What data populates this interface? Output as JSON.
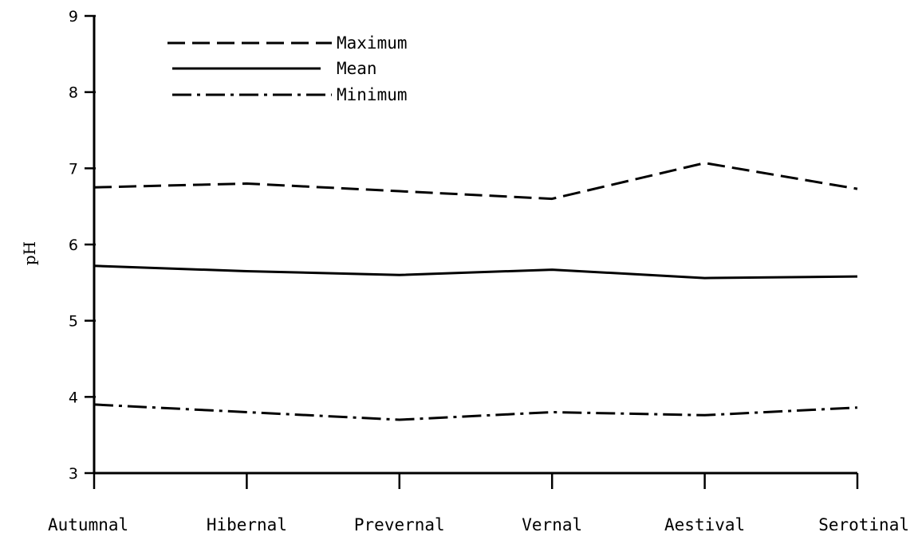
{
  "chart_data": {
    "type": "line",
    "title": "",
    "xlabel": "",
    "ylabel": "pH",
    "ylim": [
      3,
      9
    ],
    "yticks": [
      "3",
      "4",
      "5",
      "6",
      "7",
      "8",
      "9"
    ],
    "categories": [
      "Autumnal",
      "Hibernal",
      "Prevernal",
      "Vernal",
      "Aestival",
      "Serotinal"
    ],
    "grid": false,
    "legend_position": "top-left",
    "series": [
      {
        "name": "Maximum",
        "style": "dashed",
        "values": [
          6.75,
          6.8,
          6.7,
          6.6,
          7.07,
          6.73
        ]
      },
      {
        "name": "Mean",
        "style": "solid",
        "values": [
          5.72,
          5.65,
          5.6,
          5.67,
          5.56,
          5.58
        ]
      },
      {
        "name": "Minimum",
        "style": "dashdot",
        "values": [
          3.9,
          3.8,
          3.7,
          3.8,
          3.76,
          3.86
        ]
      }
    ]
  }
}
